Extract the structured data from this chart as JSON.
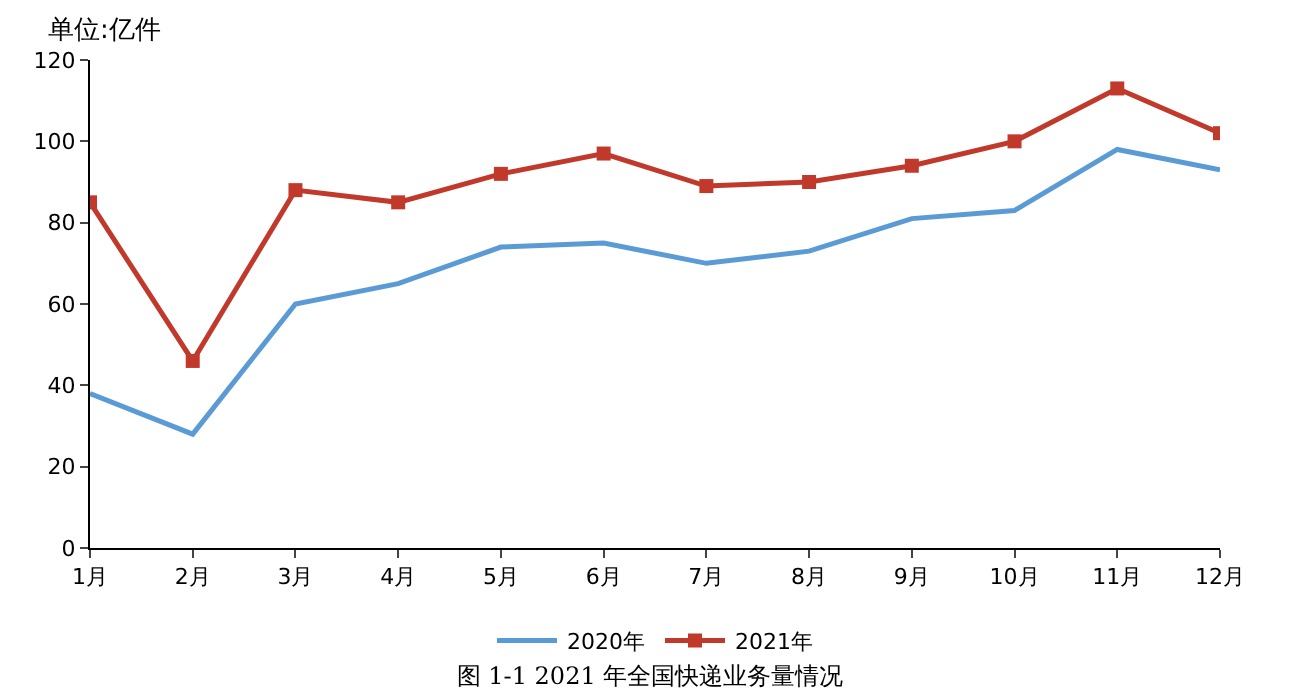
{
  "chart_data": {
    "type": "line",
    "title": "图 1-1 2021 年全国快递业务量情况",
    "ylabel": "单位:亿件",
    "categories": [
      "1月",
      "2月",
      "3月",
      "4月",
      "5月",
      "6月",
      "7月",
      "8月",
      "9月",
      "10月",
      "11月",
      "12月"
    ],
    "series": [
      {
        "name": "2020年",
        "color": "#5b9bd5",
        "marker": "none",
        "values": [
          38,
          28,
          60,
          65,
          74,
          75,
          70,
          73,
          81,
          83,
          98,
          93
        ]
      },
      {
        "name": "2021年",
        "color": "#c0392b",
        "marker": "square",
        "values": [
          85,
          46,
          88,
          85,
          92,
          97,
          89,
          90,
          94,
          100,
          113,
          102
        ]
      }
    ],
    "ylim": [
      0,
      120
    ],
    "yticks": [
      0,
      20,
      40,
      60,
      80,
      100,
      120
    ],
    "grid": false,
    "legend": "bottom"
  }
}
